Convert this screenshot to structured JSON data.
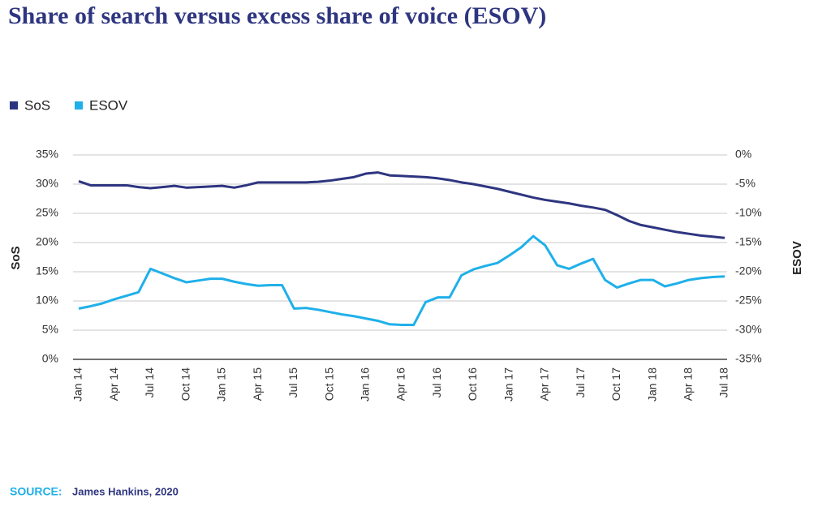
{
  "chart_data": {
    "type": "line",
    "title": "Share of search versus excess share of voice (ESOV)",
    "categories": [
      "Jan 14",
      null,
      null,
      "Apr 14",
      null,
      null,
      "Jul 14",
      null,
      null,
      "Oct 14",
      null,
      null,
      "Jan 15",
      null,
      null,
      "Apr 15",
      null,
      null,
      "Jul 15",
      null,
      null,
      "Oct 15",
      null,
      null,
      "Jan 16",
      null,
      null,
      "Apr 16",
      null,
      null,
      "Jul 16",
      null,
      null,
      "Oct 16",
      null,
      null,
      "Jan 17",
      null,
      null,
      "Apr 17",
      null,
      null,
      "Jul 17",
      null,
      null,
      "Oct 17",
      null,
      null,
      "Jan 18",
      null,
      null,
      "Apr 18",
      null,
      null,
      "Jul 18"
    ],
    "series": [
      {
        "name": "SoS",
        "color": "#2e3580",
        "axis": "y",
        "values": [
          30.5,
          29.8,
          29.8,
          29.8,
          29.8,
          29.5,
          29.3,
          29.5,
          29.7,
          29.4,
          29.5,
          29.6,
          29.7,
          29.4,
          29.8,
          30.3,
          30.3,
          30.3,
          30.3,
          30.3,
          30.4,
          30.6,
          30.9,
          31.2,
          31.8,
          32.0,
          31.5,
          31.4,
          31.3,
          31.2,
          31.0,
          30.7,
          30.3,
          30.0,
          29.6,
          29.2,
          28.7,
          28.2,
          27.7,
          27.3,
          27.0,
          26.7,
          26.3,
          26.0,
          25.6,
          24.7,
          23.7,
          23.0,
          22.6,
          22.2,
          21.8,
          21.5,
          21.2,
          21.0,
          20.8
        ]
      },
      {
        "name": "ESOV",
        "color": "#1fb0ea",
        "axis": "y2",
        "values": [
          -26.3,
          -25.9,
          -25.4,
          -24.7,
          -24.1,
          -23.5,
          -19.5,
          -20.3,
          -21.1,
          -21.8,
          -21.5,
          -21.2,
          -21.2,
          -21.7,
          -22.1,
          -22.4,
          -22.3,
          -22.3,
          -26.3,
          -26.2,
          -26.5,
          -26.9,
          -27.3,
          -27.6,
          -28.0,
          -28.4,
          -29.0,
          -29.1,
          -29.1,
          -25.2,
          -24.4,
          -24.4,
          -20.6,
          -19.6,
          -19.0,
          -18.5,
          -17.2,
          -15.8,
          -13.9,
          -15.5,
          -18.9,
          -19.5,
          -18.6,
          -17.8,
          -21.4,
          -22.7,
          -22.0,
          -21.4,
          -21.4,
          -22.5,
          -22.0,
          -21.4,
          -21.1,
          -20.9,
          -20.8
        ]
      }
    ],
    "y_label": "SoS",
    "y2_label": "ESOV",
    "ylim": [
      0,
      35
    ],
    "yticks": [
      {
        "value": 0,
        "label": "0%"
      },
      {
        "value": 5,
        "label": "5%"
      },
      {
        "value": 10,
        "label": "10%"
      },
      {
        "value": 15,
        "label": "15%"
      },
      {
        "value": 20,
        "label": "20%"
      },
      {
        "value": 25,
        "label": "25%"
      },
      {
        "value": 30,
        "label": "30%"
      },
      {
        "value": 35,
        "label": "35%"
      }
    ],
    "y2lim": [
      -35,
      0
    ],
    "y2ticks": [
      {
        "value": -35,
        "label": "-35%"
      },
      {
        "value": -30,
        "label": "-30%"
      },
      {
        "value": -25,
        "label": "-25%"
      },
      {
        "value": -20,
        "label": "-20%"
      },
      {
        "value": -15,
        "label": "-15%"
      },
      {
        "value": -10,
        "label": "-10%"
      },
      {
        "value": -5,
        "label": "-5%"
      },
      {
        "value": 0,
        "label": "0%"
      }
    ],
    "grid": true,
    "legend": "top-left",
    "source_label": "SOURCE:",
    "source": "James Hankins, 2020"
  }
}
